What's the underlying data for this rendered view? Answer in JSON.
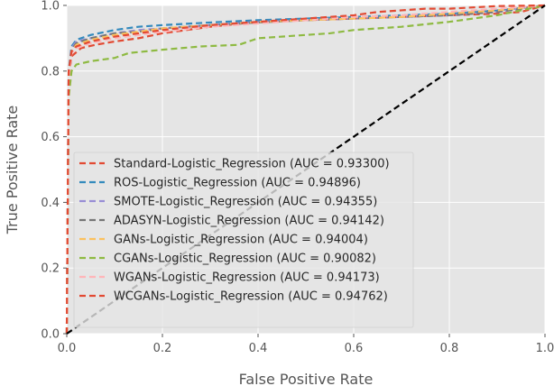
{
  "chart_data": {
    "type": "line",
    "title": "",
    "xlabel": "False Positive Rate",
    "ylabel": "True Positive Rate",
    "xlim": [
      0.0,
      1.0
    ],
    "ylim": [
      0.0,
      1.0
    ],
    "xticks": [
      "0.0",
      "0.2",
      "0.4",
      "0.6",
      "0.8",
      "1.0"
    ],
    "yticks": [
      "0.0",
      "0.2",
      "0.4",
      "0.6",
      "0.8",
      "1.0"
    ],
    "grid": true,
    "legend_position": "center-left",
    "diagonal": {
      "x": [
        0,
        1
      ],
      "y": [
        0,
        1
      ],
      "color": "#000000",
      "style": "dashed"
    },
    "series": [
      {
        "name": "Standard-Logistic_Regression (AUC = 0.93300)",
        "color": "#e24a33",
        "x": [
          0,
          0.004,
          0.01,
          0.03,
          0.06,
          0.1,
          0.15,
          0.2,
          0.3,
          0.4,
          0.5,
          0.6,
          0.7,
          0.8,
          0.9,
          0.95,
          1.0
        ],
        "y": [
          0,
          0.78,
          0.845,
          0.87,
          0.88,
          0.89,
          0.9,
          0.915,
          0.935,
          0.95,
          0.955,
          0.96,
          0.965,
          0.97,
          0.975,
          0.98,
          1.0
        ]
      },
      {
        "name": "ROS-Logistic_Regression (AUC = 0.94896)",
        "color": "#348abd",
        "x": [
          0,
          0.004,
          0.01,
          0.02,
          0.05,
          0.1,
          0.15,
          0.2,
          0.3,
          0.4,
          0.5,
          0.6,
          0.7,
          0.8,
          0.9,
          1.0
        ],
        "y": [
          0,
          0.8,
          0.875,
          0.895,
          0.91,
          0.925,
          0.935,
          0.94,
          0.948,
          0.955,
          0.96,
          0.965,
          0.97,
          0.975,
          0.985,
          1.0
        ]
      },
      {
        "name": "SMOTE-Logistic_Regression (AUC = 0.94355)",
        "color": "#988ed5",
        "x": [
          0,
          0.004,
          0.01,
          0.02,
          0.05,
          0.1,
          0.15,
          0.2,
          0.3,
          0.4,
          0.5,
          0.6,
          0.7,
          0.8,
          0.9,
          1.0
        ],
        "y": [
          0,
          0.79,
          0.87,
          0.89,
          0.9,
          0.915,
          0.925,
          0.93,
          0.94,
          0.95,
          0.955,
          0.96,
          0.965,
          0.97,
          0.98,
          1.0
        ]
      },
      {
        "name": "ADASYN-Logistic_Regression (AUC = 0.94142)",
        "color": "#777777",
        "x": [
          0,
          0.004,
          0.01,
          0.02,
          0.05,
          0.1,
          0.15,
          0.2,
          0.3,
          0.4,
          0.5,
          0.6,
          0.7,
          0.8,
          0.9,
          1.0
        ],
        "y": [
          0,
          0.79,
          0.865,
          0.885,
          0.9,
          0.915,
          0.92,
          0.93,
          0.94,
          0.948,
          0.955,
          0.96,
          0.965,
          0.97,
          0.98,
          1.0
        ]
      },
      {
        "name": "GANs-Logistic_Regression (AUC = 0.94004)",
        "color": "#fbc15e",
        "x": [
          0,
          0.004,
          0.01,
          0.02,
          0.05,
          0.1,
          0.15,
          0.2,
          0.3,
          0.4,
          0.5,
          0.6,
          0.7,
          0.8,
          0.9,
          1.0
        ],
        "y": [
          0,
          0.78,
          0.86,
          0.88,
          0.895,
          0.91,
          0.92,
          0.93,
          0.94,
          0.95,
          0.955,
          0.96,
          0.965,
          0.975,
          0.985,
          1.0
        ]
      },
      {
        "name": "CGANs-Logistic_Regression (AUC = 0.90082)",
        "color": "#8eba42",
        "x": [
          0,
          0.004,
          0.01,
          0.02,
          0.05,
          0.1,
          0.13,
          0.2,
          0.28,
          0.36,
          0.4,
          0.5,
          0.55,
          0.6,
          0.7,
          0.8,
          0.9,
          1.0
        ],
        "y": [
          0,
          0.72,
          0.8,
          0.82,
          0.83,
          0.84,
          0.855,
          0.865,
          0.875,
          0.88,
          0.9,
          0.91,
          0.915,
          0.925,
          0.935,
          0.95,
          0.97,
          1.0
        ]
      },
      {
        "name": "WGANs-Logistic_Regression (AUC = 0.94173)",
        "color": "#ffb5b8",
        "x": [
          0,
          0.004,
          0.01,
          0.02,
          0.05,
          0.1,
          0.15,
          0.2,
          0.3,
          0.4,
          0.5,
          0.6,
          0.7,
          0.8,
          0.9,
          1.0
        ],
        "y": [
          0,
          0.78,
          0.855,
          0.87,
          0.885,
          0.9,
          0.91,
          0.92,
          0.935,
          0.945,
          0.955,
          0.965,
          0.97,
          0.98,
          0.99,
          1.0
        ]
      },
      {
        "name": "WCGANs-Logistic_Regression (AUC = 0.94762)",
        "color": "#e24a33",
        "x": [
          0,
          0.004,
          0.01,
          0.02,
          0.05,
          0.1,
          0.15,
          0.2,
          0.3,
          0.4,
          0.5,
          0.6,
          0.65,
          0.7,
          0.75,
          0.8,
          0.9,
          1.0
        ],
        "y": [
          0,
          0.8,
          0.86,
          0.875,
          0.89,
          0.905,
          0.915,
          0.925,
          0.94,
          0.95,
          0.96,
          0.97,
          0.98,
          0.985,
          0.99,
          0.99,
          0.998,
          1.0
        ]
      }
    ]
  }
}
